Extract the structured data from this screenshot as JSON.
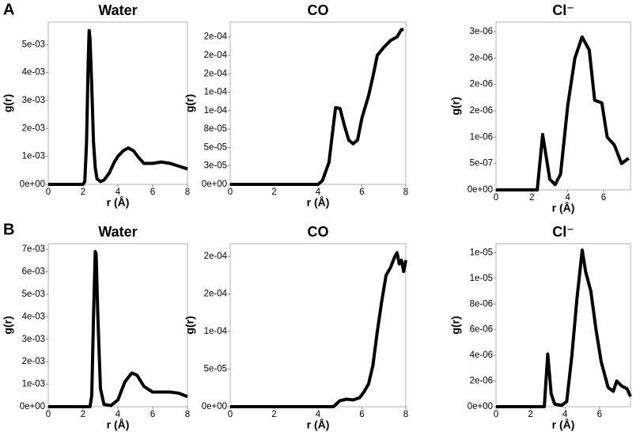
{
  "panels": [
    "A",
    "B"
  ],
  "chart_data": [
    {
      "type": "line",
      "title": "Water",
      "xlabel": "r (Å)",
      "ylabel": "g(r)",
      "color": "#000000",
      "x": [
        0,
        1,
        2,
        2.1,
        2.2,
        2.3,
        2.35,
        2.4,
        2.5,
        2.6,
        2.7,
        2.8,
        3.0,
        3.2,
        3.5,
        3.8,
        4.0,
        4.3,
        4.6,
        4.9,
        5.2,
        5.5,
        6.0,
        6.5,
        7.0,
        7.5,
        8.0
      ],
      "values": [
        0,
        0,
        0,
        0.0001,
        0.0015,
        0.0045,
        0.0055,
        0.0052,
        0.0035,
        0.0015,
        0.0006,
        0.0002,
        0.0001,
        0.00015,
        0.0004,
        0.0008,
        0.001,
        0.0012,
        0.0013,
        0.0012,
        0.00095,
        0.00075,
        0.00075,
        0.0008,
        0.00075,
        0.00065,
        0.00055
      ],
      "xlim": [
        0,
        8
      ],
      "ylim": [
        0,
        0.0058
      ],
      "xticks": [
        0,
        2,
        4,
        6,
        8
      ],
      "yticks": [
        {
          "value": 0,
          "label": "0e+00"
        },
        {
          "value": 0.001,
          "label": "1e-03"
        },
        {
          "value": 0.002,
          "label": "2e-03"
        },
        {
          "value": 0.003,
          "label": "3e-03"
        },
        {
          "value": 0.004,
          "label": "4e-03"
        },
        {
          "value": 0.005,
          "label": "5e-03"
        }
      ]
    },
    {
      "type": "line",
      "title": "CO",
      "xlabel": "r (Å)",
      "ylabel": "g(r)",
      "color": "#000000",
      "x": [
        0,
        1,
        2,
        3,
        4,
        4.2,
        4.5,
        4.7,
        4.8,
        5.0,
        5.2,
        5.4,
        5.6,
        5.8,
        6.0,
        6.3,
        6.5,
        6.7,
        7.0,
        7.3,
        7.6,
        7.8,
        7.9
      ],
      "values": [
        0,
        0,
        0,
        0,
        0,
        5e-06,
        3e-05,
        8e-05,
        0.000104,
        0.000103,
        8e-05,
        6e-05,
        5.5e-05,
        6e-05,
        9e-05,
        0.00012,
        0.000146,
        0.000175,
        0.000186,
        0.000195,
        0.0002,
        0.00021,
        0.00021
      ],
      "xlim": [
        0,
        8
      ],
      "ylim": [
        0,
        0.00022
      ],
      "xticks": [
        0,
        2,
        4,
        6,
        8
      ],
      "yticks": [
        {
          "value": 0,
          "label": "0e+00"
        },
        {
          "value": 2.5e-05,
          "label": "3e-05"
        },
        {
          "value": 5e-05,
          "label": "5e-05"
        },
        {
          "value": 7.5e-05,
          "label": "8e-05"
        },
        {
          "value": 0.0001,
          "label": "1e-04"
        },
        {
          "value": 0.000125,
          "label": "1e-04"
        },
        {
          "value": 0.00015,
          "label": "2e-04"
        },
        {
          "value": 0.000175,
          "label": "2e-04"
        },
        {
          "value": 0.0002,
          "label": "2e-04"
        }
      ]
    },
    {
      "type": "line",
      "title": "Cl⁻",
      "xlabel": "r (Å)",
      "ylabel": "g(r)",
      "color": "#000000",
      "x": [
        0,
        1,
        2,
        2.3,
        2.6,
        3.0,
        3.3,
        3.6,
        4.0,
        4.4,
        4.8,
        5.2,
        5.5,
        5.9,
        6.2,
        6.6,
        7.0,
        7.4
      ],
      "values": [
        0,
        0,
        0,
        0,
        1.05e-06,
        2e-07,
        1e-07,
        3e-07,
        1.6e-06,
        2.5e-06,
        2.9e-06,
        2.65e-06,
        1.7e-06,
        1.65e-06,
        1e-06,
        8.5e-07,
        5e-07,
        6e-07
      ],
      "xlim": [
        0,
        7.5
      ],
      "ylim": [
        0,
        3.18e-06
      ],
      "xticks": [
        0,
        2,
        4,
        6
      ],
      "yticks": [
        {
          "value": 0,
          "label": "0e+00"
        },
        {
          "value": 5e-07,
          "label": "5e-07"
        },
        {
          "value": 1e-06,
          "label": "1e-06"
        },
        {
          "value": 1.5e-06,
          "label": "2e-06"
        },
        {
          "value": 2e-06,
          "label": "2e-06"
        },
        {
          "value": 2.5e-06,
          "label": "2e-06"
        },
        {
          "value": 3e-06,
          "label": "3e-06"
        }
      ]
    },
    {
      "type": "line",
      "title": "Water",
      "xlabel": "r (Å)",
      "ylabel": "g(r)",
      "color": "#000000",
      "x": [
        0,
        1,
        2,
        2.4,
        2.5,
        2.6,
        2.7,
        2.75,
        2.85,
        3.0,
        3.2,
        3.6,
        4.0,
        4.4,
        4.8,
        5.1,
        5.5,
        6.0,
        6.5,
        7.0,
        7.5,
        8.0
      ],
      "values": [
        0,
        0,
        0,
        0,
        0.0005,
        0.004,
        0.0069,
        0.0068,
        0.004,
        0.0008,
        0.0001,
        5e-05,
        0.0003,
        0.0011,
        0.0015,
        0.0014,
        0.0009,
        0.00065,
        0.00065,
        0.00065,
        0.0006,
        0.00045
      ],
      "xlim": [
        0,
        8
      ],
      "ylim": [
        0,
        0.00725
      ],
      "xticks": [
        0,
        2,
        4,
        6,
        8
      ],
      "yticks": [
        {
          "value": 0,
          "label": "0e+00"
        },
        {
          "value": 0.001,
          "label": "1e-03"
        },
        {
          "value": 0.002,
          "label": "2e-03"
        },
        {
          "value": 0.003,
          "label": "3e-03"
        },
        {
          "value": 0.004,
          "label": "4e-03"
        },
        {
          "value": 0.005,
          "label": "5e-03"
        },
        {
          "value": 0.006,
          "label": "6e-03"
        },
        {
          "value": 0.007,
          "label": "7e-03"
        }
      ]
    },
    {
      "type": "line",
      "title": "CO",
      "xlabel": "r (Å)",
      "ylabel": "g(r)",
      "color": "#000000",
      "x": [
        0,
        1,
        2,
        3,
        4,
        4.7,
        5.0,
        5.3,
        5.6,
        5.9,
        6.1,
        6.3,
        6.5,
        6.7,
        6.9,
        7.1,
        7.3,
        7.5,
        7.6,
        7.7,
        7.8,
        7.9,
        8.0
      ],
      "values": [
        0,
        0,
        0,
        0,
        0,
        0,
        8e-06,
        1e-05,
        9e-06,
        1.2e-05,
        2e-05,
        3e-05,
        5.5e-05,
        0.0001,
        0.00014,
        0.000175,
        0.000185,
        0.0002,
        0.000205,
        0.00019,
        0.000195,
        0.00018,
        0.000195
      ],
      "xlim": [
        0,
        8
      ],
      "ylim": [
        0,
        0.000217
      ],
      "xticks": [
        0,
        2,
        4,
        6,
        8
      ],
      "yticks": [
        {
          "value": 0,
          "label": "0e+00"
        },
        {
          "value": 5e-05,
          "label": "5e-05"
        },
        {
          "value": 0.0001,
          "label": "1e-04"
        },
        {
          "value": 0.00015,
          "label": "2e-04"
        },
        {
          "value": 0.0002,
          "label": "2e-04"
        }
      ]
    },
    {
      "type": "line",
      "title": "Cl⁻",
      "xlabel": "r (Å)",
      "ylabel": "g(r)",
      "color": "#000000",
      "x": [
        0,
        1,
        2,
        2.8,
        3.0,
        3.2,
        3.4,
        3.8,
        4.1,
        4.4,
        4.7,
        5.0,
        5.2,
        5.5,
        5.8,
        6.1,
        6.5,
        6.8,
        7.0,
        7.3,
        7.6,
        7.8
      ],
      "values": [
        0,
        0,
        0,
        0,
        4.1e-06,
        1e-06,
        2e-07,
        1e-07,
        4e-07,
        4e-06,
        8.5e-06,
        1.22e-05,
        1.05e-05,
        9e-06,
        6e-06,
        3.5e-06,
        1.5e-06,
        1.2e-06,
        2e-06,
        1.6e-06,
        1.4e-06,
        8e-07
      ],
      "xlim": [
        0,
        7.8
      ],
      "ylim": [
        0,
        1.27e-05
      ],
      "xticks": [
        0,
        2,
        4,
        6
      ],
      "yticks": [
        {
          "value": 0,
          "label": "0e+00"
        },
        {
          "value": 2e-06,
          "label": "2e-06"
        },
        {
          "value": 4e-06,
          "label": "4e-06"
        },
        {
          "value": 6e-06,
          "label": "6e-06"
        },
        {
          "value": 8e-06,
          "label": "8e-06"
        },
        {
          "value": 1e-05,
          "label": "1e-05"
        },
        {
          "value": 1.2e-05,
          "label": "1e-05"
        }
      ]
    }
  ]
}
